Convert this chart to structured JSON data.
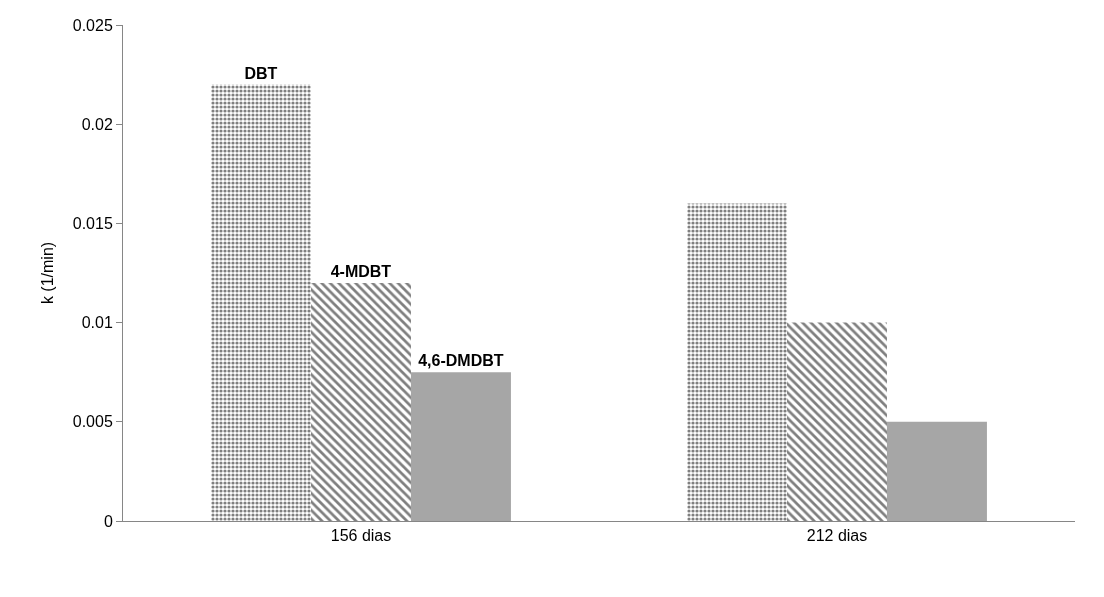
{
  "chart_data": {
    "type": "bar",
    "ylabel": "k (1/min)",
    "categories": [
      "156 dias",
      "212 dias"
    ],
    "series": [
      {
        "name": "DBT",
        "color": "#000000",
        "values": [
          0.022,
          0.016
        ]
      },
      {
        "name": "4-MDBT",
        "color": "#000000",
        "values": [
          0.012,
          0.01
        ]
      },
      {
        "name": "4,6-DMDBT",
        "color": "#a6a6a6",
        "values": [
          0.0075,
          0.005
        ]
      }
    ],
    "ylim": [
      0,
      0.025
    ],
    "yticks": [
      0,
      0.005,
      0.01,
      0.015,
      0.02,
      0.025
    ],
    "legend": false
  }
}
